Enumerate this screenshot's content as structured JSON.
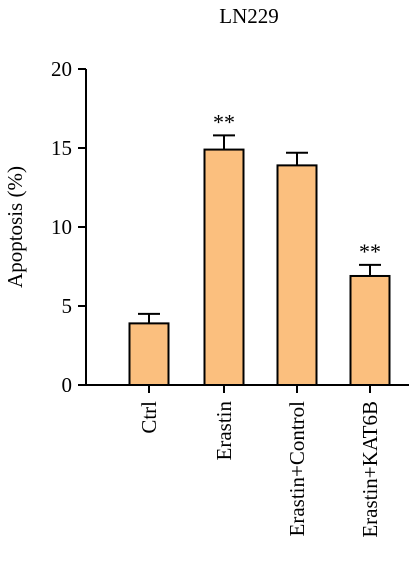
{
  "chart_data": {
    "type": "bar",
    "title": "LN229",
    "ylabel": "Apoptosis (%)",
    "xlabel": "",
    "ylim": [
      0,
      20
    ],
    "yticks": [
      0,
      5,
      10,
      15,
      20
    ],
    "categories": [
      "Ctrl",
      "Erastin",
      "Erastin+Control",
      "Erastin+KAT6B"
    ],
    "values": [
      3.9,
      14.9,
      13.9,
      6.9
    ],
    "errors": [
      0.6,
      0.9,
      0.8,
      0.7
    ],
    "annotations": [
      "",
      "**",
      "",
      "**"
    ],
    "bar_color": "#fbbf7e",
    "edge_color": "#000000",
    "grid": false
  }
}
